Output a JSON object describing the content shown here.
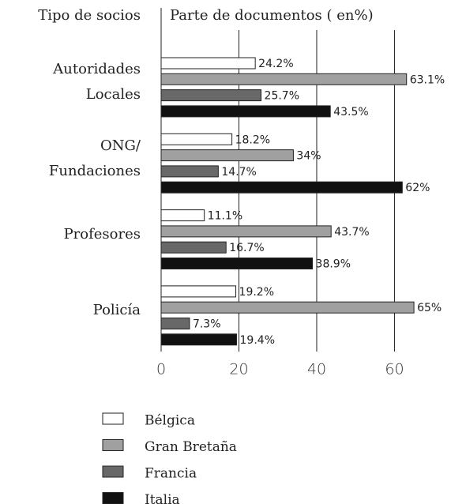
{
  "chart_data": {
    "type": "bar",
    "orientation": "horizontal",
    "y_label": "Tipo de socios",
    "x_label": "Parte de documentos ( en%)",
    "categories": [
      "Autoridades Locales",
      "ONG/\nFundaciones",
      "Profesores",
      "Policía"
    ],
    "series": [
      {
        "name": "Bélgica",
        "color": "#ffffff",
        "values": [
          24.2,
          18.2,
          11.1,
          19.2
        ],
        "value_labels": [
          "24.2%",
          "18.2%",
          "11.1%",
          "19.2%"
        ]
      },
      {
        "name": "Gran Bretaña",
        "color": "#a0a0a0",
        "values": [
          63.1,
          34,
          43.7,
          65
        ],
        "value_labels": [
          "63.1%",
          "34%",
          "43.7%",
          "65%"
        ]
      },
      {
        "name": "Francia",
        "color": "#686868",
        "values": [
          25.7,
          14.7,
          16.7,
          7.3
        ],
        "value_labels": [
          "25.7%",
          "14.7%",
          "16.7%",
          "7.3%"
        ]
      },
      {
        "name": "Italia",
        "color": "#111111",
        "values": [
          43.5,
          62,
          38.9,
          19.4
        ],
        "value_labels": [
          "43.5%",
          "62%",
          "38.9%",
          "19.4%"
        ]
      }
    ],
    "xlim": [
      0,
      66
    ],
    "xticks": [
      0,
      20,
      40,
      60
    ],
    "grid": true,
    "legend": "bottom"
  }
}
